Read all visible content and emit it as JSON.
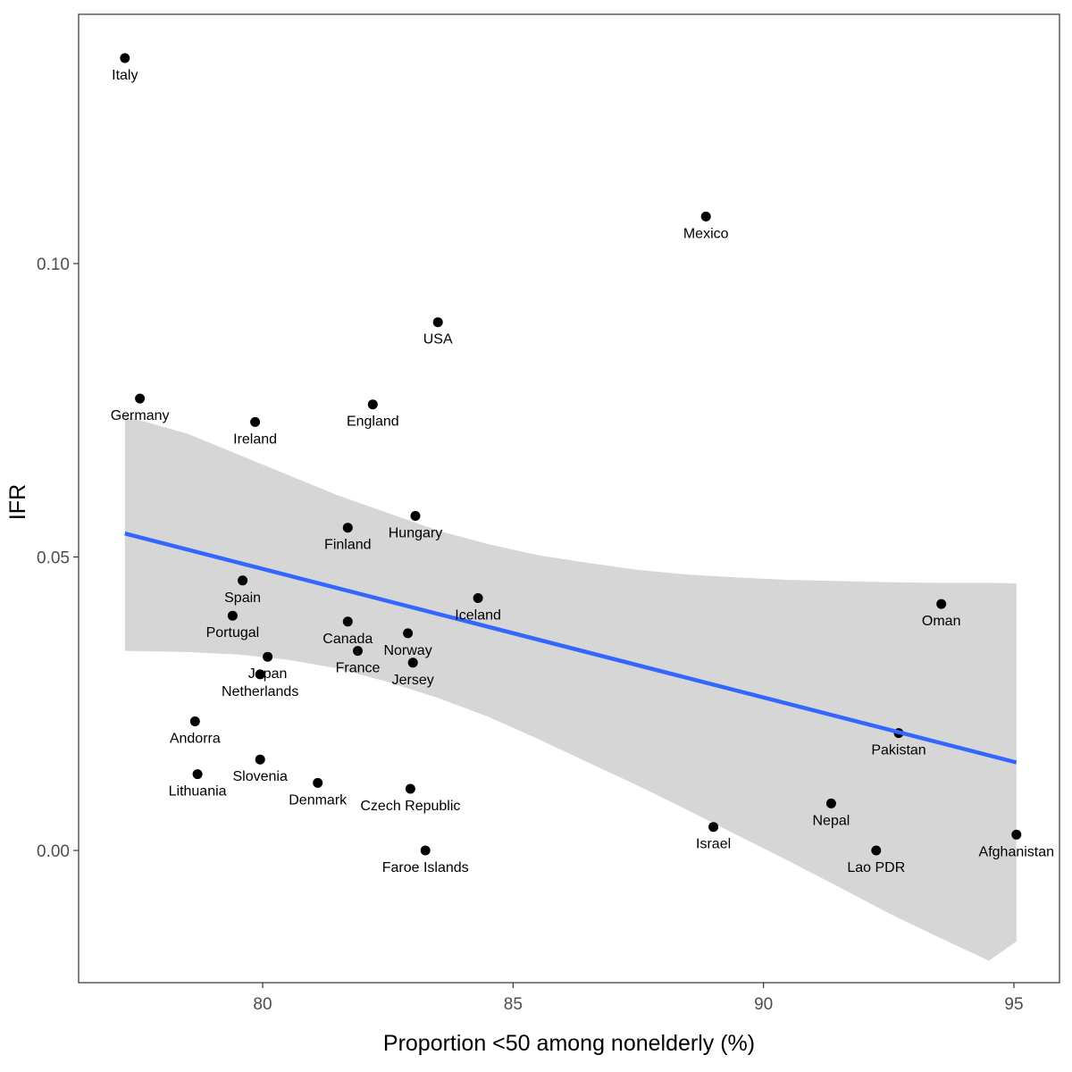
{
  "chart_data": {
    "type": "scatter",
    "xlabel": "Proportion <50 among nonelderly (%)",
    "ylabel": "IFR",
    "xlim": [
      76.6,
      96.0
    ],
    "ylim": [
      -0.022,
      0.144
    ],
    "x_ticks": [
      {
        "value": 80,
        "label": "80"
      },
      {
        "value": 85,
        "label": "85"
      },
      {
        "value": 90,
        "label": "90"
      },
      {
        "value": 95,
        "label": "95"
      }
    ],
    "y_ticks": [
      {
        "value": 0.0,
        "label": "0.00"
      },
      {
        "value": 0.05,
        "label": "0.05"
      },
      {
        "value": 0.1,
        "label": "0.10"
      }
    ],
    "grid": false,
    "points": [
      {
        "label": "Italy",
        "x": 77.25,
        "y": 0.135
      },
      {
        "label": "Germany",
        "x": 77.55,
        "y": 0.077
      },
      {
        "label": "Ireland",
        "x": 79.85,
        "y": 0.073
      },
      {
        "label": "England",
        "x": 82.2,
        "y": 0.076
      },
      {
        "label": "USA",
        "x": 83.5,
        "y": 0.09
      },
      {
        "label": "Mexico",
        "x": 88.85,
        "y": 0.108
      },
      {
        "label": "Finland",
        "x": 81.7,
        "y": 0.055
      },
      {
        "label": "Hungary",
        "x": 83.05,
        "y": 0.057
      },
      {
        "label": "Spain",
        "x": 79.6,
        "y": 0.046
      },
      {
        "label": "Portugal",
        "x": 79.4,
        "y": 0.04
      },
      {
        "label": "Canada",
        "x": 81.7,
        "y": 0.039
      },
      {
        "label": "Iceland",
        "x": 84.3,
        "y": 0.043
      },
      {
        "label": "Oman",
        "x": 93.55,
        "y": 0.042
      },
      {
        "label": "Norway",
        "x": 82.9,
        "y": 0.037
      },
      {
        "label": "France",
        "x": 81.9,
        "y": 0.034
      },
      {
        "label": "Japan",
        "x": 80.1,
        "y": 0.033
      },
      {
        "label": "Jersey",
        "x": 83.0,
        "y": 0.032
      },
      {
        "label": "Netherlands",
        "x": 79.95,
        "y": 0.03
      },
      {
        "label": "Andorra",
        "x": 78.65,
        "y": 0.022
      },
      {
        "label": "Pakistan",
        "x": 92.7,
        "y": 0.02
      },
      {
        "label": "Slovenia",
        "x": 79.95,
        "y": 0.0155
      },
      {
        "label": "Lithuania",
        "x": 78.7,
        "y": 0.013
      },
      {
        "label": "Denmark",
        "x": 81.1,
        "y": 0.0115
      },
      {
        "label": "Czech Republic",
        "x": 82.95,
        "y": 0.0105
      },
      {
        "label": "Nepal",
        "x": 91.35,
        "y": 0.008
      },
      {
        "label": "Israel",
        "x": 89.0,
        "y": 0.004
      },
      {
        "label": "Afghanistan",
        "x": 95.05,
        "y": 0.0027
      },
      {
        "label": "Faroe Islands",
        "x": 83.25,
        "y": 0.0
      },
      {
        "label": "Lao PDR",
        "x": 92.25,
        "y": 0.0
      }
    ],
    "trend_line": {
      "color": "#3366ff",
      "points": [
        {
          "x": 77.25,
          "y": 0.054
        },
        {
          "x": 95.05,
          "y": 0.015
        }
      ]
    },
    "confidence_band": {
      "color": "#cccccc",
      "upper": [
        {
          "x": 77.25,
          "y": 0.074
        },
        {
          "x": 78.5,
          "y": 0.071
        },
        {
          "x": 79.5,
          "y": 0.0675
        },
        {
          "x": 80.5,
          "y": 0.064
        },
        {
          "x": 81.5,
          "y": 0.0605
        },
        {
          "x": 82.5,
          "y": 0.0575
        },
        {
          "x": 83.5,
          "y": 0.0545
        },
        {
          "x": 84.5,
          "y": 0.0522
        },
        {
          "x": 85.5,
          "y": 0.0503
        },
        {
          "x": 86.5,
          "y": 0.049
        },
        {
          "x": 87.5,
          "y": 0.0478
        },
        {
          "x": 88.5,
          "y": 0.047
        },
        {
          "x": 89.5,
          "y": 0.0465
        },
        {
          "x": 90.5,
          "y": 0.0461
        },
        {
          "x": 91.5,
          "y": 0.0459
        },
        {
          "x": 92.5,
          "y": 0.0457
        },
        {
          "x": 93.5,
          "y": 0.0456
        },
        {
          "x": 94.5,
          "y": 0.0456
        },
        {
          "x": 95.05,
          "y": 0.0455
        }
      ],
      "lower": [
        {
          "x": 77.25,
          "y": 0.034
        },
        {
          "x": 78.5,
          "y": 0.0338
        },
        {
          "x": 79.5,
          "y": 0.0334
        },
        {
          "x": 80.5,
          "y": 0.0325
        },
        {
          "x": 81.5,
          "y": 0.031
        },
        {
          "x": 82.5,
          "y": 0.0287
        },
        {
          "x": 83.5,
          "y": 0.026
        },
        {
          "x": 84.5,
          "y": 0.0228
        },
        {
          "x": 85.5,
          "y": 0.019
        },
        {
          "x": 86.5,
          "y": 0.015
        },
        {
          "x": 87.5,
          "y": 0.011
        },
        {
          "x": 88.5,
          "y": 0.0068
        },
        {
          "x": 89.5,
          "y": 0.0025
        },
        {
          "x": 90.5,
          "y": -0.0018
        },
        {
          "x": 91.5,
          "y": -0.0062
        },
        {
          "x": 92.5,
          "y": -0.0107
        },
        {
          "x": 93.5,
          "y": -0.0148
        },
        {
          "x": 94.5,
          "y": -0.0188
        },
        {
          "x": 95.05,
          "y": -0.0155
        }
      ]
    }
  }
}
